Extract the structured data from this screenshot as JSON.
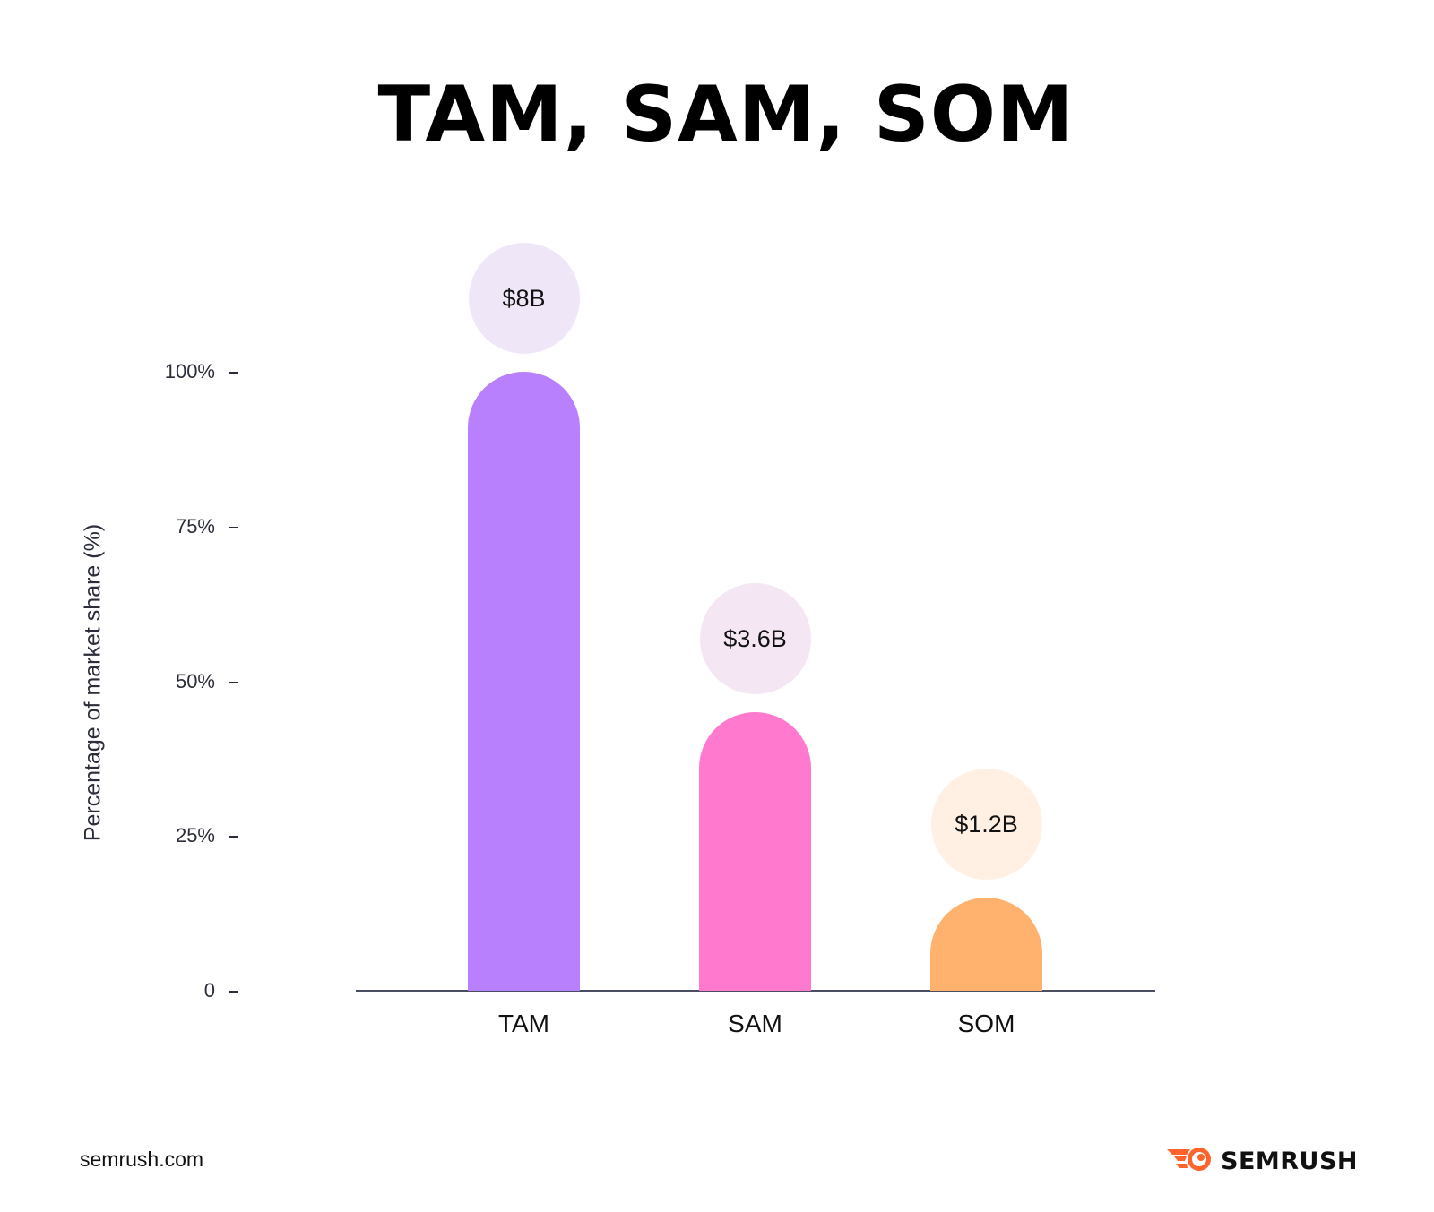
{
  "title": "TAM, SAM, SOM",
  "chart_data": {
    "type": "bar",
    "title": "TAM, SAM, SOM",
    "xlabel": "",
    "ylabel": "Percentage of market share (%)",
    "categories": [
      "TAM",
      "SAM",
      "SOM"
    ],
    "values": [
      100,
      45,
      15
    ],
    "value_labels": [
      "$8B",
      "$3.6B",
      "$1.2B"
    ],
    "ylim": [
      0,
      100
    ],
    "yticks": [
      {
        "value": 100,
        "label": "100%"
      },
      {
        "value": 75,
        "label": "75%"
      },
      {
        "value": 50,
        "label": "50%"
      },
      {
        "value": 25,
        "label": "25%"
      },
      {
        "value": 0,
        "label": "0"
      }
    ],
    "grid": false,
    "legend": "none",
    "colors": {
      "TAM": "#b980fe",
      "SAM": "#ff7acf",
      "SOM": "#ffb16e",
      "TAM_bubble": "#efe7f8",
      "SAM_bubble": "#f4e6f3",
      "SOM_bubble": "#fff0e3"
    }
  },
  "footer": {
    "source": "semrush.com",
    "brand": "SEMRUSH",
    "brand_icon": "semrush-fireball-icon",
    "brand_color": "#ff642d"
  }
}
